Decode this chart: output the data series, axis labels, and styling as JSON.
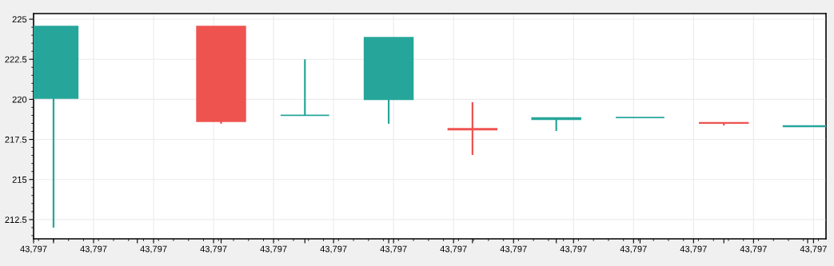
{
  "chart_data": {
    "type": "candlestick",
    "categories": [
      null,
      null,
      null,
      null,
      null,
      null,
      null,
      null,
      null,
      null
    ],
    "ohlc": [
      [
        220.07,
        224.55,
        212.0,
        224.55
      ],
      null,
      [
        224.55,
        224.55,
        218.48,
        218.63
      ],
      [
        219.0,
        222.5,
        219.0,
        219.0
      ],
      [
        220.0,
        223.85,
        218.48,
        223.85
      ],
      [
        218.17,
        219.82,
        216.53,
        218.1
      ],
      [
        218.75,
        218.85,
        218.03,
        218.85
      ],
      [
        218.87,
        218.87,
        218.87,
        218.87
      ],
      [
        218.55,
        218.55,
        218.37,
        218.52
      ],
      [
        218.3,
        218.35,
        218.3,
        218.35
      ]
    ],
    "colors": [
      "#26a69a",
      null,
      "#ef5350",
      "#26a69a",
      "#26a69a",
      "#ef5350",
      "#26a69a",
      "#26a69a",
      "#ef5350",
      "#26a69a"
    ],
    "annotations": [
      "43,797",
      "43,797",
      "43,797",
      "43,797",
      "43,797",
      "43,797",
      "43,797",
      "43,797",
      "43,797",
      "43,797",
      "43,797",
      "43,797",
      "43,797",
      "43,797"
    ],
    "ylim": [
      211.3,
      225.35
    ],
    "yticks": [
      212.5,
      215,
      217.5,
      220,
      222.5,
      225
    ],
    "grid": true
  }
}
